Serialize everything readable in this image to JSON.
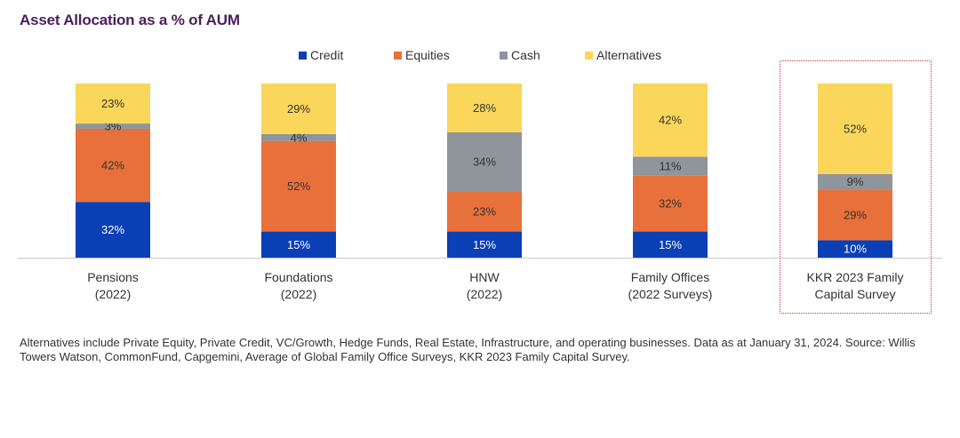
{
  "chart_data": {
    "type": "bar",
    "stacked": true,
    "title": "Asset Allocation as a % of AUM",
    "categories": [
      [
        "Pensions",
        "(2022)"
      ],
      [
        "Foundations",
        "(2022)"
      ],
      [
        "HNW",
        "(2022)"
      ],
      [
        "Family Offices",
        "(2022 Surveys)"
      ],
      [
        "KKR 2023 Family",
        "Capital Survey"
      ]
    ],
    "series": [
      {
        "name": "Credit",
        "color": "#0a3fb5",
        "label_color": "#ffffff",
        "values": [
          32,
          15,
          15,
          15,
          10
        ]
      },
      {
        "name": "Equities",
        "color": "#e8703a",
        "label_color": "#333333",
        "values": [
          42,
          52,
          23,
          32,
          29
        ]
      },
      {
        "name": "Cash",
        "color": "#8f959a",
        "label_color": "#333333",
        "values": [
          3,
          4,
          34,
          11,
          9
        ]
      },
      {
        "name": "Alternatives",
        "color": "#fad75a",
        "label_color": "#333333",
        "values": [
          23,
          29,
          28,
          42,
          52
        ]
      }
    ],
    "value_suffix": "%",
    "legend_position": "top-center",
    "highlighted_category": 4,
    "xlabel": "",
    "ylabel": "",
    "ylim": [
      0,
      100
    ],
    "grid": false
  },
  "footnote": "Alternatives include Private Equity, Private Credit, VC/Growth, Hedge Funds, Real Estate, Infrastructure, and operating businesses. Data as at January 31, 2024. Source: Willis Towers Watson, CommonFund, Capgemini, Average of Global Family Office Surveys, KKR 2023 Family Capital Survey."
}
